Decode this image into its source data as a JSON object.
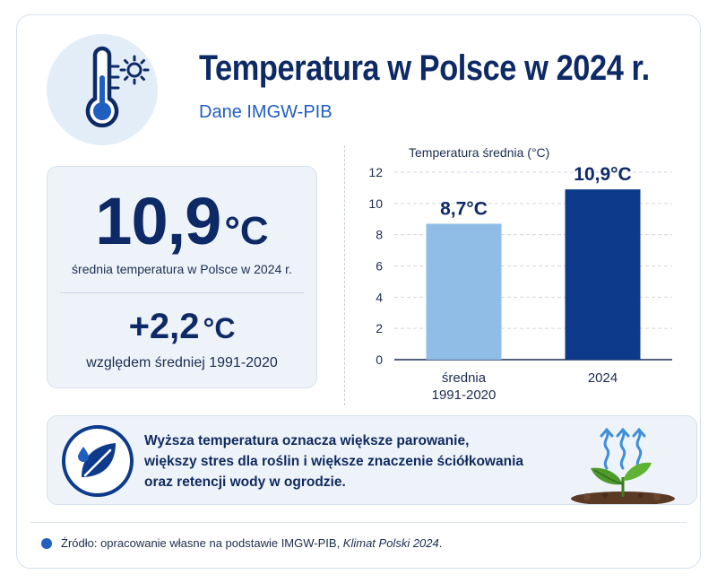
{
  "header": {
    "title": "Temperatura w Polsce w 2024 r.",
    "subtitle": "Dane IMGW-PIB"
  },
  "stats": {
    "main_value": "10,9",
    "main_unit": "°C",
    "main_label": "średnia temperatura w Polsce w 2024 r.",
    "delta_value": "+2,2",
    "delta_unit": "°C",
    "delta_label": "względem średniej 1991-2020"
  },
  "chart_data": {
    "type": "bar",
    "title": "Temperatura średnia (°C)",
    "categories": [
      "średnia\n1991-2020",
      "2024"
    ],
    "category_lines": [
      [
        "średnia",
        "1991-2020"
      ],
      [
        "2024"
      ]
    ],
    "values": [
      8.7,
      10.9
    ],
    "value_labels": [
      "8,7°C",
      "10,9°C"
    ],
    "bar_colors": [
      "#8fbde6",
      "#0e3a8c"
    ],
    "ylim": [
      0,
      12
    ],
    "yticks": [
      0,
      2,
      4,
      6,
      8,
      10,
      12
    ],
    "grid": true
  },
  "info": {
    "lines": [
      "Wyższa temperatura oznacza większe parowanie,",
      "większy stres dla roślin i większe znaczenie ściółkowania",
      "oraz retencji wody w ogrodzie."
    ]
  },
  "footer": {
    "prefix": "Źródło: opracowanie własne na podstawie IMGW-PIB, ",
    "italic": "Klimat Polski 2024",
    "suffix": "."
  },
  "icons": {
    "header": "thermometer-sun-icon",
    "info": "leaf-drop-icon",
    "plant": "sprout-evaporation-icon",
    "footer": "bullet-dot-icon"
  },
  "colors": {
    "accent": "#1f5fbf",
    "dark": "#0e2a66"
  }
}
